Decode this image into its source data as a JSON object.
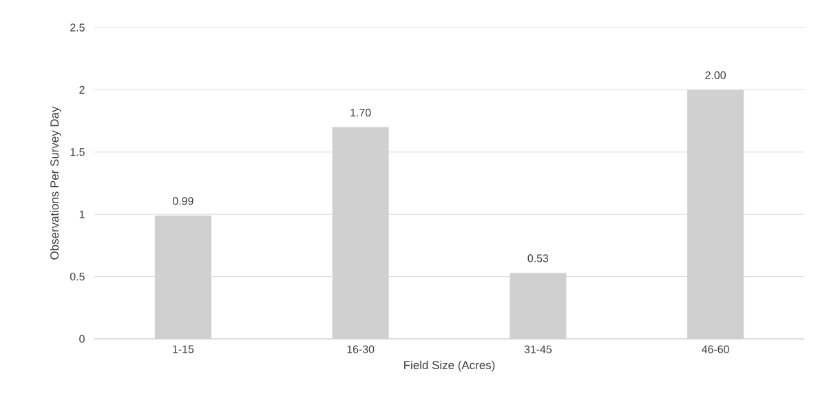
{
  "chart_data": {
    "type": "bar",
    "xlabel": "Field Size (Acres)",
    "ylabel": "Observations Per Survey Day",
    "categories": [
      "1-15",
      "16-30",
      "31-45",
      "46-60"
    ],
    "values": [
      0.99,
      1.7,
      0.53,
      2.0
    ],
    "value_labels": [
      "0.99",
      "1.70",
      "0.53",
      "2.00"
    ],
    "color": "#d0d0d0",
    "ylim": [
      0,
      2.5
    ],
    "yticks": [
      0,
      0.5,
      1,
      1.5,
      2,
      2.5
    ],
    "grid": "y"
  }
}
